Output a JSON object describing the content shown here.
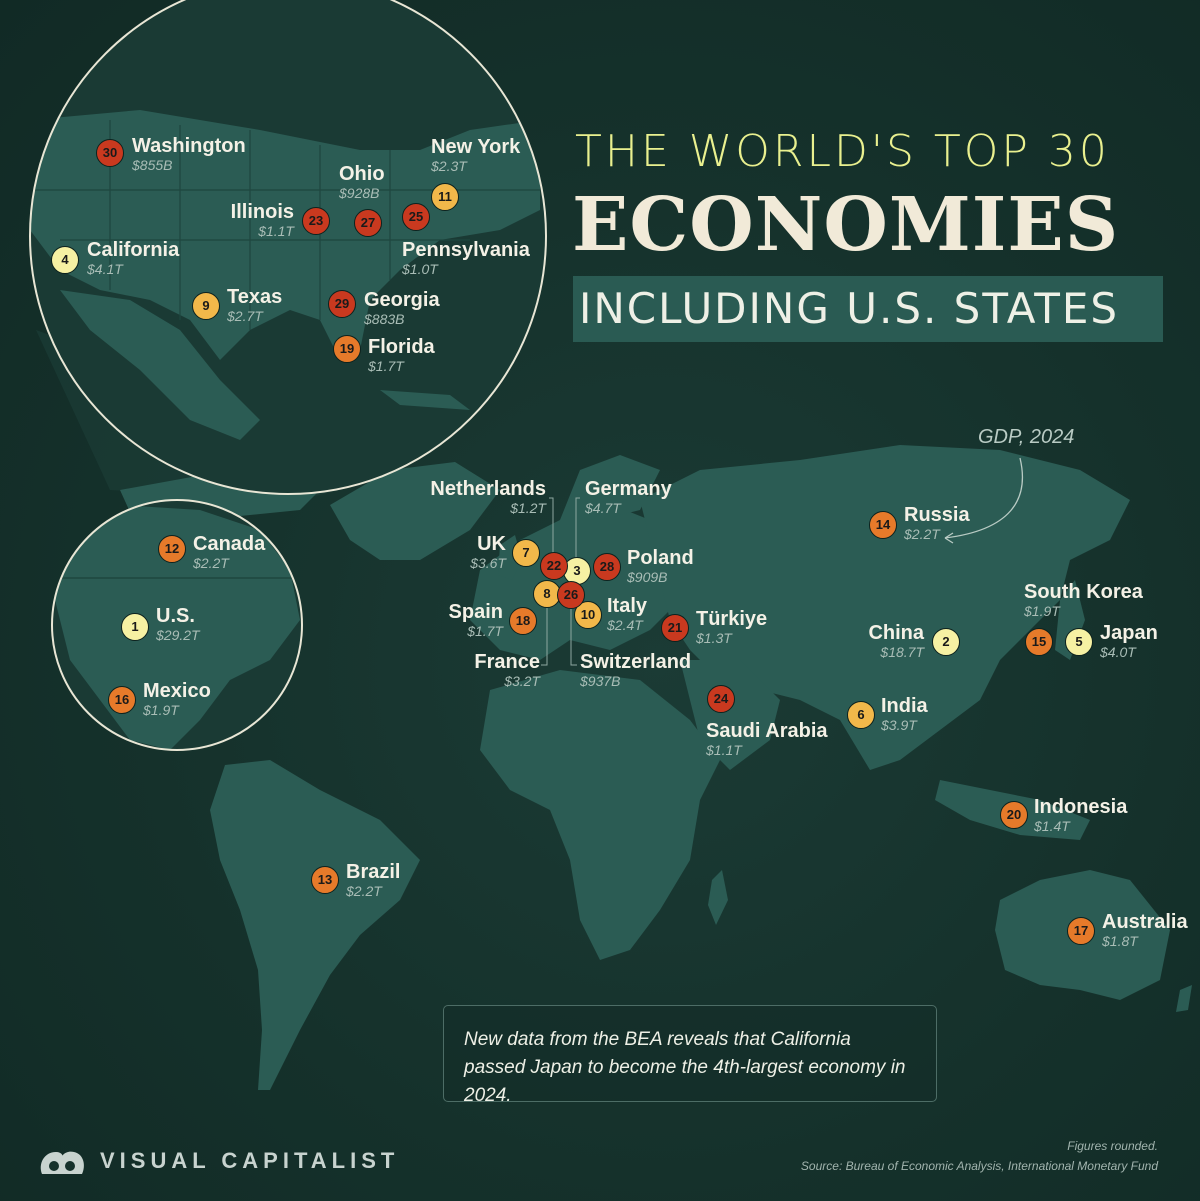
{
  "title": {
    "line1": "THE WORLD'S TOP 30",
    "line2": "ECONOMIES",
    "line3": "INCLUDING U.S. STATES"
  },
  "gdp_label": "GDP, 2024",
  "note": "New data from the BEA reveals that California passed Japan to become the 4th-largest economy in 2024.",
  "footer": {
    "line1": "Figures rounded.",
    "line2": "Source: Bureau of Economic Analysis, International Monetary Fund"
  },
  "brand": "VISUAL CAPITALIST",
  "colors": {
    "background": "#14302b",
    "land": "#2b5c54",
    "tier1": "#f6f1a3",
    "tier2": "#f2b84a",
    "tier3": "#e67a2a",
    "tier4": "#c9391f",
    "title_accent": "#e9f08f"
  },
  "economies": [
    {
      "rank": "1",
      "name": "U.S.",
      "gdp": "$29.2T"
    },
    {
      "rank": "2",
      "name": "China",
      "gdp": "$18.7T"
    },
    {
      "rank": "3",
      "name": "Germany",
      "gdp": "$4.7T"
    },
    {
      "rank": "4",
      "name": "California",
      "gdp": "$4.1T"
    },
    {
      "rank": "5",
      "name": "Japan",
      "gdp": "$4.0T"
    },
    {
      "rank": "6",
      "name": "India",
      "gdp": "$3.9T"
    },
    {
      "rank": "7",
      "name": "UK",
      "gdp": "$3.6T"
    },
    {
      "rank": "8",
      "name": "France",
      "gdp": "$3.2T"
    },
    {
      "rank": "9",
      "name": "Texas",
      "gdp": "$2.7T"
    },
    {
      "rank": "10",
      "name": "Italy",
      "gdp": "$2.4T"
    },
    {
      "rank": "11",
      "name": "New York",
      "gdp": "$2.3T"
    },
    {
      "rank": "12",
      "name": "Canada",
      "gdp": "$2.2T"
    },
    {
      "rank": "13",
      "name": "Brazil",
      "gdp": "$2.2T"
    },
    {
      "rank": "14",
      "name": "Russia",
      "gdp": "$2.2T"
    },
    {
      "rank": "15",
      "name": "South Korea",
      "gdp": "$1.9T"
    },
    {
      "rank": "16",
      "name": "Mexico",
      "gdp": "$1.9T"
    },
    {
      "rank": "17",
      "name": "Australia",
      "gdp": "$1.8T"
    },
    {
      "rank": "18",
      "name": "Spain",
      "gdp": "$1.7T"
    },
    {
      "rank": "19",
      "name": "Florida",
      "gdp": "$1.7T"
    },
    {
      "rank": "20",
      "name": "Indonesia",
      "gdp": "$1.4T"
    },
    {
      "rank": "21",
      "name": "Türkiye",
      "gdp": "$1.3T"
    },
    {
      "rank": "22",
      "name": "Netherlands",
      "gdp": "$1.2T"
    },
    {
      "rank": "23",
      "name": "Illinois",
      "gdp": "$1.1T"
    },
    {
      "rank": "24",
      "name": "Saudi Arabia",
      "gdp": "$1.1T"
    },
    {
      "rank": "25",
      "name": "Pennsylvania",
      "gdp": "$1.0T"
    },
    {
      "rank": "26",
      "name": "Switzerland",
      "gdp": "$937B"
    },
    {
      "rank": "27",
      "name": "Ohio",
      "gdp": "$928B"
    },
    {
      "rank": "28",
      "name": "Poland",
      "gdp": "$909B"
    },
    {
      "rank": "29",
      "name": "Georgia",
      "gdp": "$883B"
    },
    {
      "rank": "30",
      "name": "Washington",
      "gdp": "$855B"
    }
  ]
}
